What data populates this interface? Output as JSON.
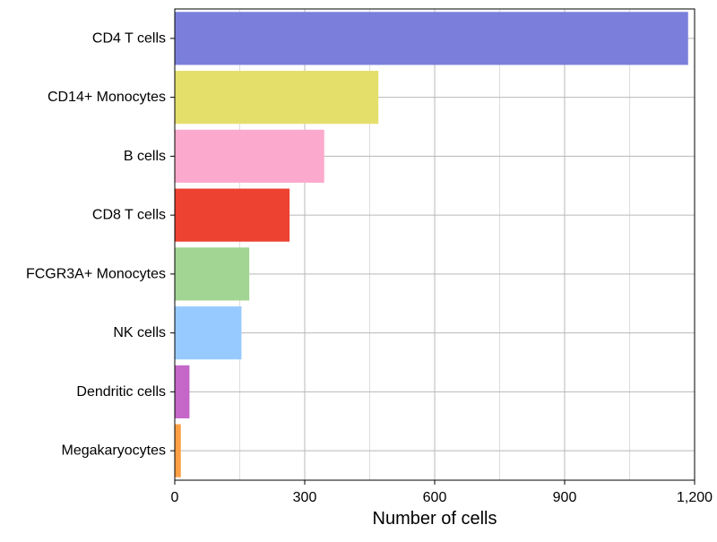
{
  "chart_data": {
    "type": "bar",
    "orientation": "horizontal",
    "categories": [
      "CD4 T cells",
      "CD14+ Monocytes",
      "B cells",
      "CD8 T cells",
      "FCGR3A+ Monocytes",
      "NK cells",
      "Dendritic cells",
      "Megakaryocytes"
    ],
    "values": [
      1185,
      470,
      345,
      265,
      172,
      154,
      34,
      14
    ],
    "colors": [
      "#7b7fdb",
      "#e4df6b",
      "#fbaacd",
      "#ed4132",
      "#a2d593",
      "#97cbff",
      "#c566c9",
      "#ff9f43"
    ],
    "xlabel": "Number of cells",
    "ylabel": "",
    "xlim": [
      0,
      1200
    ],
    "xticks": [
      0,
      300,
      600,
      900,
      1200
    ],
    "xtick_labels": [
      "0",
      "300",
      "600",
      "900",
      "1,200"
    ],
    "grid": true
  }
}
